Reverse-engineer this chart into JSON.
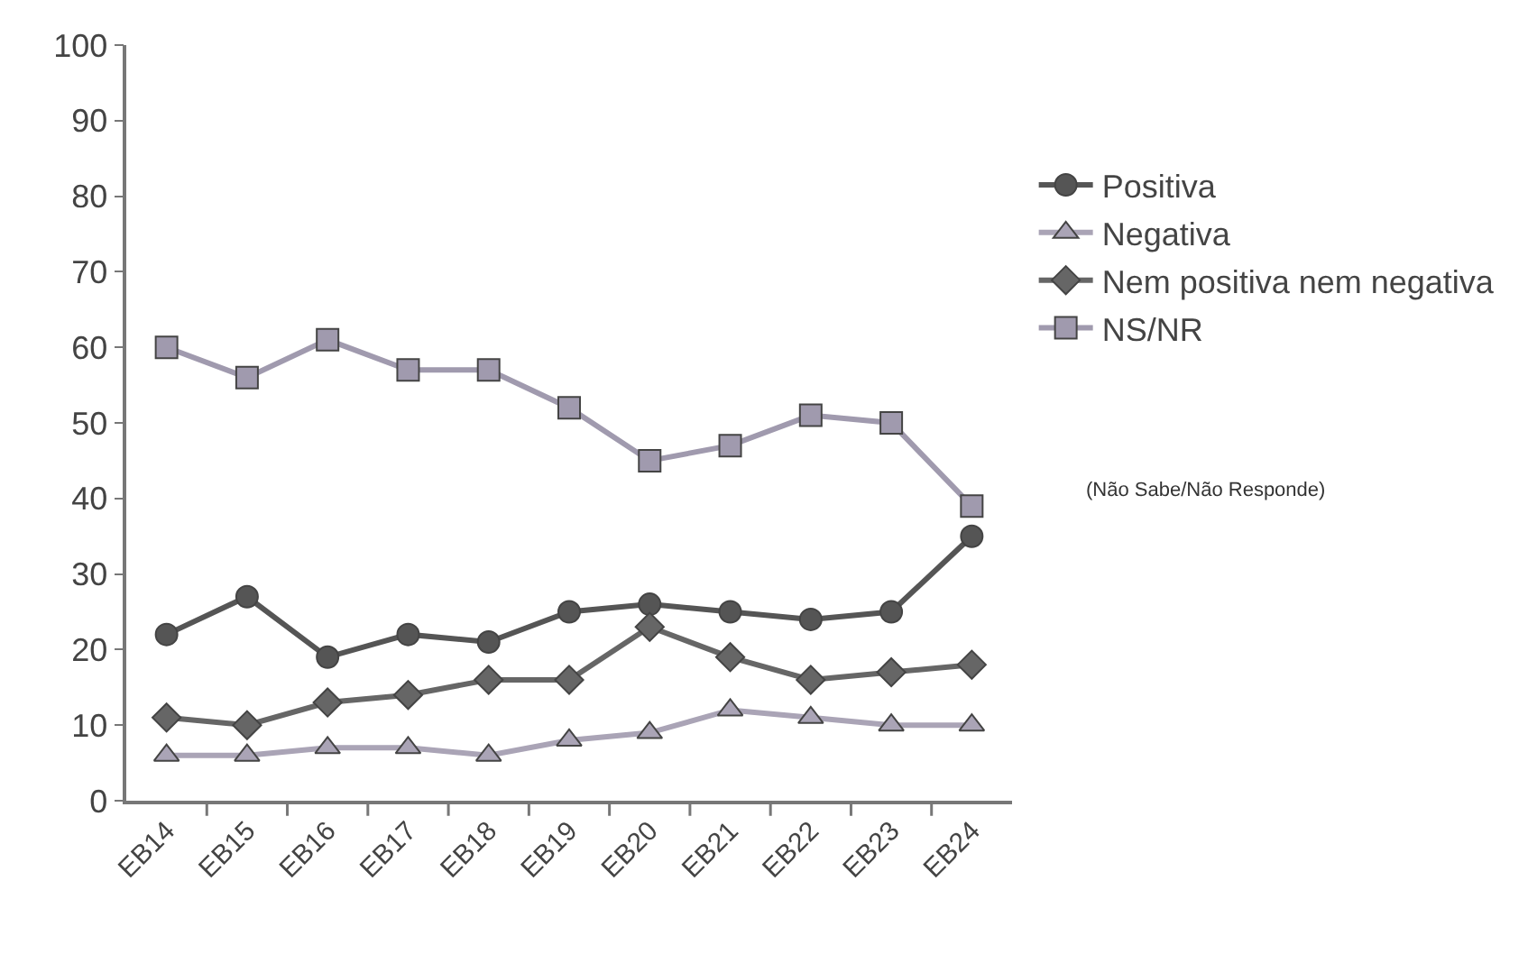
{
  "chart_data": {
    "type": "line",
    "categories": [
      "EB14",
      "EB15",
      "EB16",
      "EB17",
      "EB18",
      "EB19",
      "EB20",
      "EB21",
      "EB22",
      "EB23",
      "EB24"
    ],
    "series": [
      {
        "name": "Positiva",
        "color": "#555555",
        "marker": "circle",
        "values": [
          22,
          27,
          19,
          22,
          21,
          25,
          26,
          25,
          24,
          25,
          35
        ]
      },
      {
        "name": "Negativa",
        "color": "#aaa4b6",
        "marker": "triangle",
        "values": [
          6,
          6,
          7,
          7,
          6,
          8,
          9,
          12,
          11,
          10,
          10
        ]
      },
      {
        "name": "Nem positiva nem negativa",
        "color": "#666666",
        "marker": "diamond",
        "values": [
          11,
          10,
          13,
          14,
          16,
          16,
          23,
          19,
          16,
          17,
          18
        ]
      },
      {
        "name": "NS/NR",
        "color": "#a09aae",
        "marker": "square",
        "values": [
          60,
          56,
          61,
          57,
          57,
          52,
          45,
          47,
          51,
          50,
          39
        ]
      }
    ],
    "ylim": [
      0,
      100
    ],
    "yticks": [
      0,
      10,
      20,
      30,
      40,
      50,
      60,
      70,
      80,
      90,
      100
    ],
    "grid": false,
    "legend": "right",
    "annotations": [
      "(Não Sabe/Não Responde)"
    ]
  }
}
